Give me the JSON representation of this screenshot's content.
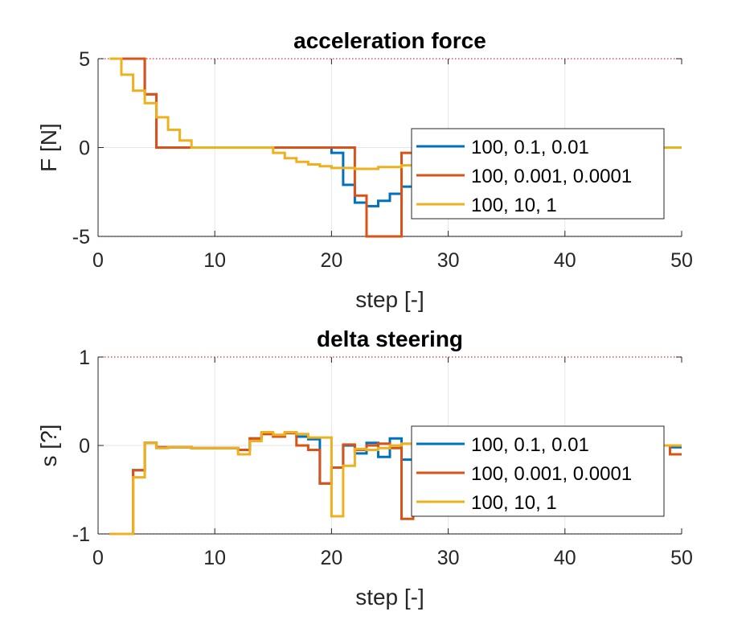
{
  "chart_data": [
    {
      "type": "line",
      "title": "acceleration force",
      "xlabel": "step [-]",
      "ylabel": "F [N]",
      "xlim": [
        0,
        50
      ],
      "ylim": [
        -5,
        5
      ],
      "xticks": [
        "0",
        "10",
        "20",
        "30",
        "40",
        "50"
      ],
      "yticks": [
        "-5",
        "0",
        "5"
      ],
      "grid": true,
      "limit_lines": [
        5,
        -5
      ],
      "legend_position": "right",
      "series": [
        {
          "name": "100, 0.1, 0.01",
          "color": "#0072BD",
          "steps": [
            [
              1,
              5
            ],
            [
              4,
              3
            ],
            [
              5,
              0
            ],
            [
              20,
              -0.3
            ],
            [
              21,
              -2.1
            ],
            [
              22,
              -3.1
            ],
            [
              23,
              -3.3
            ],
            [
              24,
              -3.0
            ],
            [
              25,
              -2.6
            ],
            [
              26,
              -2.2
            ],
            [
              27,
              -1.9
            ],
            [
              28,
              -1.6
            ],
            [
              29,
              -1.3
            ],
            [
              30,
              -1.0
            ],
            [
              31,
              -0.7
            ],
            [
              32,
              -0.4
            ],
            [
              33,
              -0.2
            ],
            [
              34,
              0
            ],
            [
              50,
              0
            ]
          ]
        },
        {
          "name": "100, 0.001, 0.0001",
          "color": "#D95319",
          "steps": [
            [
              1,
              5
            ],
            [
              4,
              3
            ],
            [
              5,
              0
            ],
            [
              22,
              -2.7
            ],
            [
              23,
              -5
            ],
            [
              26,
              -0.3
            ],
            [
              27,
              -0.1
            ],
            [
              28,
              0
            ],
            [
              50,
              0
            ]
          ]
        },
        {
          "name": "100, 10, 1",
          "color": "#EDB120",
          "steps": [
            [
              1,
              5
            ],
            [
              2,
              4.1
            ],
            [
              3,
              3.2
            ],
            [
              4,
              2.5
            ],
            [
              5,
              1.7
            ],
            [
              6,
              1.0
            ],
            [
              7,
              0.4
            ],
            [
              8,
              0
            ],
            [
              15,
              -0.3
            ],
            [
              16,
              -0.6
            ],
            [
              17,
              -0.8
            ],
            [
              18,
              -0.95
            ],
            [
              19,
              -1.05
            ],
            [
              20,
              -1.15
            ],
            [
              22,
              -1.2
            ],
            [
              24,
              -1.1
            ],
            [
              26,
              -1.0
            ],
            [
              28,
              -0.8
            ],
            [
              30,
              -0.6
            ],
            [
              32,
              -0.4
            ],
            [
              34,
              -0.2
            ],
            [
              36,
              0
            ],
            [
              50,
              0
            ]
          ]
        }
      ]
    },
    {
      "type": "line",
      "title": "delta steering",
      "xlabel": "step [-]",
      "ylabel": "s [?]",
      "xlim": [
        0,
        50
      ],
      "ylim": [
        -1,
        1
      ],
      "xticks": [
        "0",
        "10",
        "20",
        "30",
        "40",
        "50"
      ],
      "yticks": [
        "-1",
        "0",
        "1"
      ],
      "grid": true,
      "limit_lines": [
        1,
        -1
      ],
      "legend_position": "right",
      "series": [
        {
          "name": "100, 0.1, 0.01",
          "color": "#0072BD",
          "steps": [
            [
              1,
              -1
            ],
            [
              3,
              -0.28
            ],
            [
              4,
              0.03
            ],
            [
              5,
              -0.02
            ],
            [
              6,
              -0.02
            ],
            [
              8,
              -0.03
            ],
            [
              10,
              -0.03
            ],
            [
              12,
              -0.05
            ],
            [
              13,
              0.08
            ],
            [
              14,
              0.13
            ],
            [
              15,
              0.1
            ],
            [
              16,
              0.14
            ],
            [
              17,
              0.1
            ],
            [
              18,
              0.07
            ],
            [
              19,
              -0.43
            ],
            [
              20,
              -0.25
            ],
            [
              21,
              0.0
            ],
            [
              22,
              -0.09
            ],
            [
              23,
              0.03
            ],
            [
              24,
              -0.13
            ],
            [
              25,
              0.08
            ],
            [
              26,
              -0.16
            ],
            [
              27,
              -0.05
            ],
            [
              28,
              0.03
            ],
            [
              29,
              0
            ],
            [
              48,
              0
            ],
            [
              49,
              -0.02
            ],
            [
              50,
              -0.02
            ]
          ]
        },
        {
          "name": "100, 0.001, 0.0001",
          "color": "#D95319",
          "steps": [
            [
              1,
              -1
            ],
            [
              3,
              -0.28
            ],
            [
              4,
              0.03
            ],
            [
              5,
              -0.02
            ],
            [
              6,
              -0.02
            ],
            [
              8,
              -0.03
            ],
            [
              10,
              -0.03
            ],
            [
              12,
              -0.05
            ],
            [
              13,
              0.08
            ],
            [
              14,
              0.13
            ],
            [
              15,
              0.1
            ],
            [
              16,
              0.14
            ],
            [
              17,
              0.0
            ],
            [
              18,
              -0.05
            ],
            [
              19,
              -0.43
            ],
            [
              20,
              -0.25
            ],
            [
              21,
              0.01
            ],
            [
              22,
              -0.05
            ],
            [
              23,
              0.0
            ],
            [
              24,
              0.02
            ],
            [
              25,
              -0.03
            ],
            [
              26,
              -0.83
            ],
            [
              27,
              -0.05
            ],
            [
              28,
              0
            ],
            [
              48,
              0
            ],
            [
              49,
              -0.1
            ],
            [
              50,
              -0.1
            ]
          ]
        },
        {
          "name": "100, 10, 1",
          "color": "#EDB120",
          "steps": [
            [
              1,
              -1
            ],
            [
              3,
              -0.36
            ],
            [
              4,
              0.03
            ],
            [
              5,
              -0.03
            ],
            [
              6,
              -0.02
            ],
            [
              8,
              -0.03
            ],
            [
              10,
              -0.03
            ],
            [
              12,
              -0.1
            ],
            [
              13,
              0.05
            ],
            [
              14,
              0.15
            ],
            [
              15,
              0.12
            ],
            [
              16,
              0.15
            ],
            [
              17,
              0.13
            ],
            [
              18,
              0.09
            ],
            [
              19,
              0.09
            ],
            [
              20,
              -0.8
            ],
            [
              21,
              -0.23
            ],
            [
              22,
              -0.04
            ],
            [
              23,
              -0.05
            ],
            [
              24,
              -0.03
            ],
            [
              25,
              0.0
            ],
            [
              26,
              0.02
            ],
            [
              27,
              0
            ],
            [
              48,
              0
            ],
            [
              49,
              0
            ],
            [
              50,
              0
            ]
          ]
        }
      ]
    }
  ]
}
